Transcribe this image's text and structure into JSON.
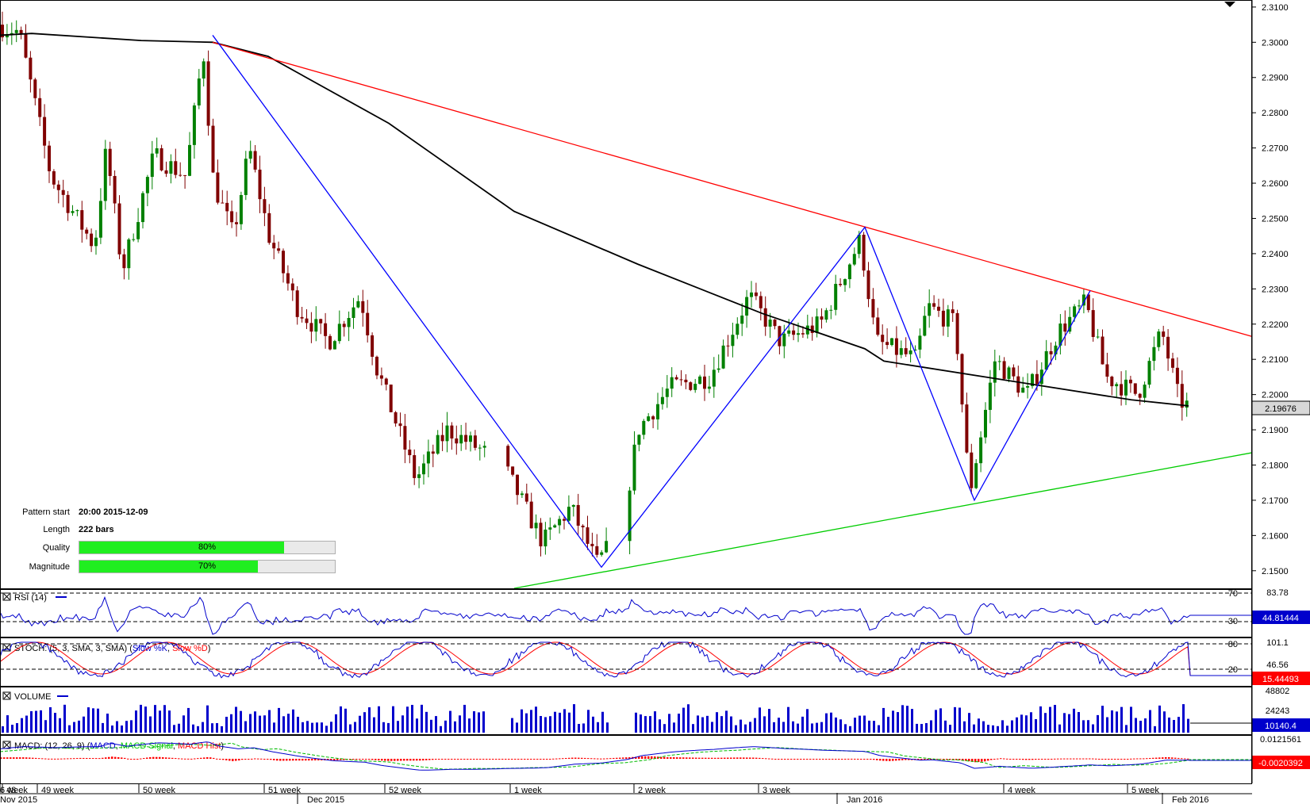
{
  "chart_data": {
    "type": "candlestick",
    "price_axis": {
      "range": [
        2.145,
        2.312
      ],
      "ticks": [
        "2.3100",
        "2.3000",
        "2.2900",
        "2.2800",
        "2.2700",
        "2.2600",
        "2.2500",
        "2.2400",
        "2.2300",
        "2.2200",
        "2.2100",
        "2.2000",
        "2.1900",
        "2.1800",
        "2.1700",
        "2.1600",
        "2.1500"
      ],
      "current_value": "2.19676"
    },
    "moving_average": {
      "color": "#000000",
      "points": [
        [
          "Nov 2015",
          2.302
        ],
        [
          "49 week",
          2.3025
        ],
        [
          "50 week",
          2.3005
        ],
        [
          "Pattern",
          2.3
        ],
        [
          "51 week",
          2.296
        ],
        [
          "52 week",
          2.277
        ],
        [
          "1 week",
          2.252
        ],
        [
          "2 week",
          2.237
        ],
        [
          "3 week",
          2.223
        ],
        [
          "Jan 2016",
          2.213
        ],
        [
          "4 week",
          2.2095
        ],
        [
          "5 week",
          2.204
        ],
        [
          "6 week",
          2.1985
        ],
        [
          "Feb 2016",
          2.1968
        ]
      ]
    },
    "pattern_lines": {
      "resistance": {
        "color": "#ff0000",
        "from": [
          "Pattern",
          2.3
        ],
        "to": [
          "end",
          2.2165
        ]
      },
      "support": {
        "color": "#00cc00",
        "from": [
          "1 week",
          2.145
        ],
        "to": [
          "end",
          2.1835
        ]
      },
      "zigzag": {
        "color": "#0000ff",
        "points": [
          [
            "Pattern",
            2.302
          ],
          [
            "1 week (late)",
            2.151
          ],
          [
            "Jan 2016",
            2.2475
          ],
          [
            "4 week (late)",
            2.17
          ],
          [
            "5 week (late)",
            2.2295
          ]
        ]
      }
    },
    "pattern_info": {
      "start_label": "Pattern start",
      "start_value": "20:00 2015-12-09",
      "length_label": "Length",
      "length_value": "222 bars",
      "quality_label": "Quality",
      "quality_value": "80%",
      "quality": 0.8,
      "magnitude_label": "Magnitude",
      "magnitude_value": "70%",
      "magnitude": 0.7
    },
    "rsi": {
      "label": "RSI (14)",
      "levels": [
        "70",
        "30"
      ],
      "top_value": "83.78",
      "current_value": "44.81444",
      "color": "#0000cc"
    },
    "stoch": {
      "label_prefix": "STOCH: (5, 3, SMA, 3, SMA) (",
      "k_label": "Slow %K",
      "sep": ", ",
      "d_label": "Slow %D",
      "suffix": ")",
      "levels": [
        "80",
        "20"
      ],
      "top_value": "101.1",
      "mid_value": "46.56",
      "current_value": "15.44493",
      "k_color": "#0000cc",
      "d_color": "#ff0000"
    },
    "volume": {
      "label": "VOLUME",
      "top_value": "48802",
      "mid_value": "24243",
      "current_value": "10140.4",
      "color": "#0000cc"
    },
    "macd": {
      "label_prefix": "MACD: (12, 26, 9) (",
      "macd_label": "MACD",
      "sep": ", ",
      "signal_label": "MACD Signal",
      "hist_label": "MACD Hist",
      "suffix": ")",
      "top_value": "0.0121561",
      "current_value": "-0.0020392"
    },
    "time_axis": {
      "weeks": [
        "48",
        "49 week",
        "50 week",
        "51 week",
        "52 week",
        "1 week",
        "2 week",
        "3 week",
        "Jan 2016",
        "4 week",
        "5 week",
        "6 week"
      ],
      "months": [
        "Nov 2015",
        "Dec 2015",
        "Jan 2016",
        "Feb 2016"
      ]
    },
    "colors": {
      "bull": "#008000",
      "bear": "#800000",
      "resistance": "#ff0000",
      "support": "#00cc00",
      "zigzag": "#0000ff"
    }
  }
}
